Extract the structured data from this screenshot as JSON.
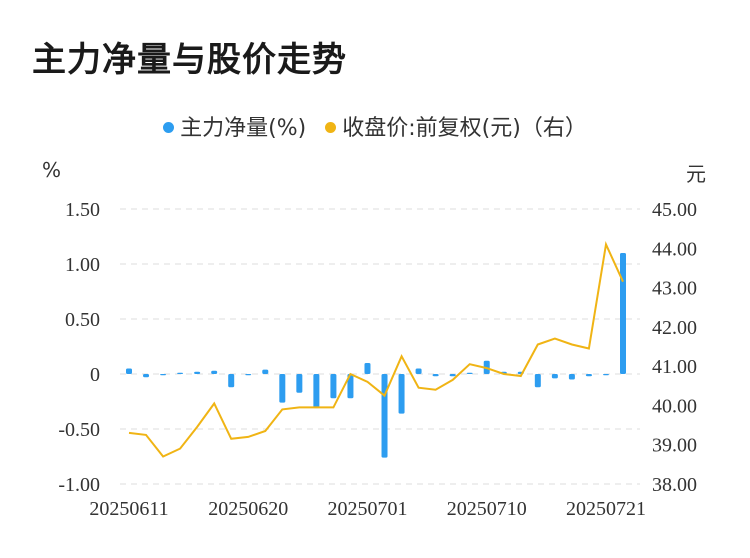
{
  "title": "主力净量与股价走势",
  "legend": {
    "series1": "主力净量(%)",
    "series2": "收盘价:前复权(元)（右）"
  },
  "units": {
    "left": "%",
    "right": "元"
  },
  "colors": {
    "bar": "#2d9df0",
    "line": "#f0b414",
    "grid": "#dddddd",
    "axis_text": "#333333"
  },
  "chart_data": {
    "type": "bar",
    "x_tick_labels": [
      "20250611",
      "20250620",
      "20250701",
      "20250710",
      "20250721"
    ],
    "y_left": {
      "ticks": [
        "1.50",
        "1.00",
        "0.50",
        "0",
        "-0.50",
        "-1.00"
      ],
      "ylim": [
        -1.0,
        1.5
      ]
    },
    "y_right": {
      "ticks": [
        "45.00",
        "44.00",
        "43.00",
        "42.00",
        "41.00",
        "40.00",
        "39.00",
        "38.00"
      ],
      "ylim": [
        38.0,
        45.0
      ]
    },
    "series": [
      {
        "name": "主力净量(%)",
        "type": "bar",
        "values": [
          0.05,
          -0.03,
          -0.01,
          0,
          0.02,
          0.03,
          -0.12,
          -0.01,
          0.04,
          -0.26,
          -0.17,
          -0.31,
          -0.22,
          -0.22,
          0.1,
          -0.76,
          -0.36,
          0.05,
          -0.02,
          -0.02,
          0.01,
          0.12,
          0.02,
          0.02,
          -0.12,
          -0.04,
          -0.05,
          -0.02,
          -0.01,
          1.1
        ]
      },
      {
        "name": "收盘价:前复权(元)（右）",
        "type": "line",
        "values": [
          39.3,
          39.25,
          38.7,
          38.9,
          39.45,
          40.05,
          39.15,
          39.2,
          39.35,
          39.9,
          39.95,
          39.95,
          39.95,
          40.8,
          40.6,
          40.25,
          41.25,
          40.45,
          40.4,
          40.65,
          41.05,
          40.95,
          40.8,
          40.75,
          41.55,
          41.7,
          41.55,
          41.45,
          44.1,
          43.15
        ]
      }
    ]
  }
}
